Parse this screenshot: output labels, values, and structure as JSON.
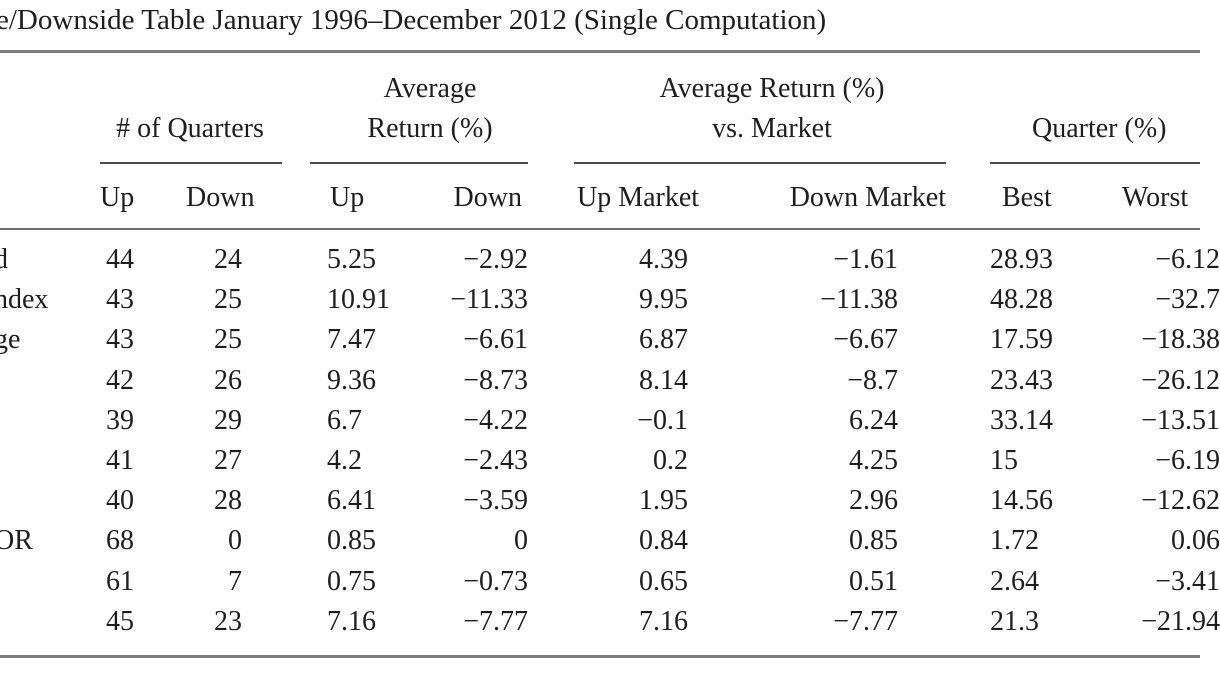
{
  "title": "e/Downside Table January 1996–December 2012 (Single Computation)",
  "groups": {
    "quarters": "# of Quarters",
    "avg_return_line1": "Average",
    "avg_return_line2": "Return (%)",
    "vs_market_line1": "Average Return (%)",
    "vs_market_line2": "vs. Market",
    "quarter": "Quarter (%)"
  },
  "columns": [
    "Up",
    "Down",
    "Up",
    "Down",
    "Up Market",
    "Down Market",
    "Best",
    "Worst"
  ],
  "rows": [
    {
      "label": "d",
      "cells": [
        "44",
        "24",
        "5.25",
        "−2.92",
        "4.39",
        "−1.61",
        "28.93",
        "−6.12"
      ]
    },
    {
      "label": "ndex",
      "cells": [
        "43",
        "25",
        "10.91",
        "−11.33",
        "9.95",
        "−11.38",
        "48.28",
        "−32.7"
      ]
    },
    {
      "label": "ge",
      "cells": [
        "43",
        "25",
        "7.47",
        "−6.61",
        "6.87",
        "−6.67",
        "17.59",
        "−18.38"
      ]
    },
    {
      "label": "",
      "cells": [
        "42",
        "26",
        "9.36",
        "−8.73",
        "8.14",
        "−8.7",
        "23.43",
        "−26.12"
      ]
    },
    {
      "label": "",
      "cells": [
        "39",
        "29",
        "6.7",
        "−4.22",
        "−0.1",
        "6.24",
        "33.14",
        "−13.51"
      ]
    },
    {
      "label": "",
      "cells": [
        "41",
        "27",
        "4.2",
        "−2.43",
        "0.2",
        "4.25",
        "15",
        "−6.19"
      ]
    },
    {
      "label": "",
      "cells": [
        "40",
        "28",
        "6.41",
        "−3.59",
        "1.95",
        "2.96",
        "14.56",
        "−12.62"
      ]
    },
    {
      "label": "OR",
      "cells": [
        "68",
        "0",
        "0.85",
        "0",
        "0.84",
        "0.85",
        "1.72",
        "0.06"
      ]
    },
    {
      "label": "",
      "cells": [
        "61",
        "7",
        "0.75",
        "−0.73",
        "0.65",
        "0.51",
        "2.64",
        "−3.41"
      ]
    },
    {
      "label": "",
      "cells": [
        "45",
        "23",
        "7.16",
        "−7.77",
        "7.16",
        "−7.77",
        "21.3",
        "−21.94"
      ]
    }
  ]
}
